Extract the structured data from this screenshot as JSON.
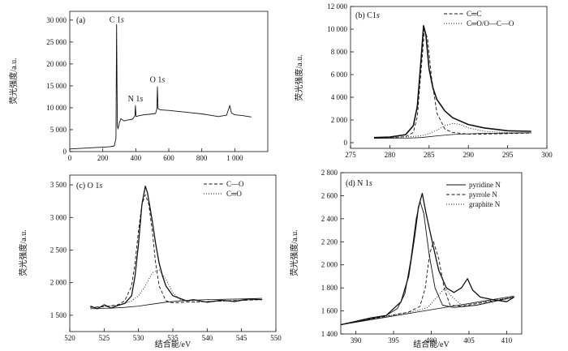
{
  "chart_data": [
    {
      "id": "a",
      "type": "line",
      "panel_label": "(a)",
      "xlabel": "",
      "ylabel": "荧光强度/a.u.",
      "xlim": [
        0,
        1200
      ],
      "ylim": [
        0,
        32000
      ],
      "xticks": [
        0,
        200,
        400,
        600,
        800,
        1000
      ],
      "xtick_labels": [
        "0",
        "200",
        "400",
        "600",
        "800",
        "1 000"
      ],
      "yticks": [
        0,
        5000,
        10000,
        15000,
        20000,
        25000,
        30000
      ],
      "ytick_labels": [
        "0",
        "5 000",
        "10 000",
        "15 000",
        "20 000",
        "25 000",
        "30 000"
      ],
      "annotations": [
        {
          "text": "C 1s",
          "x": 284,
          "y": 29500
        },
        {
          "text": "N 1s",
          "x": 398,
          "y": 11500
        },
        {
          "text": "O 1s",
          "x": 531,
          "y": 15800
        }
      ],
      "series": [
        {
          "name": "survey",
          "style": "solid",
          "x": [
            0,
            50,
            100,
            150,
            200,
            240,
            270,
            280,
            284,
            288,
            292,
            300,
            310,
            330,
            350,
            380,
            395,
            398,
            402,
            420,
            450,
            480,
            520,
            528,
            531,
            535,
            550,
            600,
            650,
            700,
            750,
            800,
            850,
            900,
            950,
            970,
            980,
            990,
            1000,
            1050,
            1100
          ],
          "y": [
            600,
            700,
            800,
            900,
            1000,
            1100,
            1300,
            3000,
            29000,
            6000,
            5200,
            6500,
            7500,
            7000,
            7200,
            7400,
            8200,
            10500,
            8000,
            8200,
            8400,
            8500,
            8700,
            9800,
            14800,
            9800,
            9500,
            9400,
            9200,
            9000,
            8800,
            8600,
            8300,
            8000,
            8300,
            10500,
            8800,
            8600,
            8400,
            8200,
            7900
          ]
        }
      ]
    },
    {
      "id": "b",
      "type": "line",
      "panel_label": "(b) C1s",
      "xlabel": "",
      "ylabel": "荧光强度/a.u.",
      "xlim": [
        275,
        300
      ],
      "ylim": [
        -500,
        12000
      ],
      "xticks": [
        275,
        280,
        285,
        290,
        295,
        300
      ],
      "xtick_labels": [
        "275",
        "280",
        "285",
        "290",
        "295",
        "300"
      ],
      "yticks": [
        0,
        2000,
        4000,
        6000,
        8000,
        10000,
        12000
      ],
      "ytick_labels": [
        "0",
        "2 000",
        "4 000",
        "6 000",
        "8 000",
        "10 000",
        "12 000"
      ],
      "legend": [
        "C═C",
        "C═O/O—C—O"
      ],
      "series": [
        {
          "name": "measured",
          "style": "solid",
          "width": 1.6,
          "x": [
            278,
            280,
            282,
            283,
            283.5,
            284,
            284.3,
            284.6,
            285,
            285.5,
            286,
            287,
            288,
            290,
            292,
            295,
            298
          ],
          "y": [
            450,
            500,
            700,
            1500,
            3200,
            7500,
            10300,
            9500,
            6500,
            4800,
            3800,
            2800,
            2200,
            1600,
            1300,
            1050,
            1000
          ]
        },
        {
          "name": "C═C",
          "style": "dashed",
          "x": [
            278,
            280,
            282,
            283,
            283.5,
            284,
            284.4,
            284.8,
            285.3,
            286,
            287,
            288,
            290,
            292,
            295,
            298
          ],
          "y": [
            420,
            450,
            520,
            900,
            2300,
            6500,
            9900,
            9200,
            5800,
            2600,
            1200,
            900,
            760,
            760,
            800,
            850
          ]
        },
        {
          "name": "C═O/O—C—O",
          "style": "dotted",
          "x": [
            278,
            282,
            284,
            285,
            286,
            287,
            288,
            289,
            290,
            292,
            295,
            298
          ],
          "y": [
            420,
            500,
            600,
            800,
            1100,
            1500,
            1700,
            1600,
            1300,
            1000,
            880,
            860
          ]
        },
        {
          "name": "background",
          "style": "solid",
          "width": 0.8,
          "x": [
            278,
            282,
            284,
            286,
            288,
            290,
            292,
            295,
            298
          ],
          "y": [
            380,
            400,
            450,
            600,
            720,
            780,
            820,
            850,
            870
          ]
        }
      ]
    },
    {
      "id": "c",
      "type": "line",
      "panel_label": "(c) O 1s",
      "xlabel": "结合能/eV",
      "ylabel": "荧光强度/a.u.",
      "xlim": [
        520,
        550
      ],
      "ylim": [
        1250,
        3650
      ],
      "xticks": [
        520,
        525,
        530,
        535,
        540,
        545,
        550
      ],
      "xtick_labels": [
        "520",
        "525",
        "530",
        "535",
        "540",
        "545",
        "550"
      ],
      "yticks": [
        1500,
        2000,
        2500,
        3000,
        3500
      ],
      "ytick_labels": [
        "1 500",
        "2 000",
        "2 500",
        "3 000",
        "3 500"
      ],
      "legend": [
        "C—O",
        "C═O"
      ],
      "series": [
        {
          "name": "measured",
          "style": "solid",
          "width": 1.3,
          "x": [
            523,
            524,
            525,
            526,
            527,
            528,
            529,
            529.5,
            530,
            530.5,
            531,
            531.3,
            531.6,
            532,
            532.5,
            533,
            533.5,
            534,
            535,
            536,
            537,
            538,
            540,
            542,
            544,
            546,
            548
          ],
          "y": [
            1640,
            1600,
            1660,
            1610,
            1650,
            1680,
            1800,
            2100,
            2600,
            3200,
            3480,
            3380,
            3200,
            2950,
            2600,
            2300,
            2100,
            1950,
            1800,
            1760,
            1720,
            1740,
            1700,
            1730,
            1710,
            1750,
            1740
          ]
        },
        {
          "name": "C—O",
          "style": "dashed",
          "x": [
            523,
            525,
            527,
            528,
            529,
            529.5,
            530,
            530.5,
            531,
            531.5,
            532,
            532.5,
            533,
            534,
            535,
            537,
            540,
            548
          ],
          "y": [
            1620,
            1630,
            1660,
            1720,
            1950,
            2300,
            2800,
            3200,
            3350,
            3200,
            2800,
            2300,
            1950,
            1720,
            1690,
            1700,
            1710,
            1740
          ]
        },
        {
          "name": "C═O",
          "style": "dotted",
          "x": [
            523,
            527,
            529,
            530,
            531,
            532,
            533,
            534,
            535,
            536,
            538,
            540,
            548
          ],
          "y": [
            1620,
            1650,
            1720,
            1800,
            1950,
            2150,
            2200,
            2050,
            1850,
            1740,
            1700,
            1710,
            1740
          ]
        },
        {
          "name": "background",
          "style": "solid",
          "width": 0.8,
          "x": [
            523,
            526,
            528,
            530,
            532,
            534,
            536,
            540,
            545,
            548
          ],
          "y": [
            1600,
            1610,
            1620,
            1640,
            1670,
            1700,
            1720,
            1740,
            1750,
            1760
          ]
        }
      ]
    },
    {
      "id": "d",
      "type": "line",
      "panel_label": "(d) N 1s",
      "xlabel": "结合能/eV",
      "ylabel": "荧光强度/a.u.",
      "xlim": [
        388,
        412
      ],
      "ylim": [
        1400,
        2800
      ],
      "xticks": [
        390,
        395,
        400,
        405,
        410
      ],
      "xtick_labels": [
        "390",
        "395",
        "400",
        "405",
        "410"
      ],
      "yticks": [
        1400,
        1600,
        1800,
        2000,
        2200,
        2400,
        2600,
        2800
      ],
      "ytick_labels": [
        "1 400",
        "1 600",
        "1 800",
        "2 000",
        "2 200",
        "2 400",
        "2 600",
        "2 800"
      ],
      "legend": [
        "pyridine N",
        "pyrrole N",
        "graphite N"
      ],
      "series": [
        {
          "name": "measured",
          "style": "solid",
          "width": 1.3,
          "x": [
            388,
            390,
            392,
            394,
            396,
            397,
            397.8,
            398.3,
            398.8,
            399.3,
            399.8,
            400.3,
            401,
            402,
            403,
            404,
            404.8,
            405.5,
            406.5,
            408,
            410,
            411
          ],
          "y": [
            1480,
            1510,
            1540,
            1560,
            1680,
            1900,
            2250,
            2500,
            2620,
            2450,
            2300,
            2150,
            1950,
            1800,
            1760,
            1800,
            1880,
            1780,
            1720,
            1700,
            1680,
            1720
          ]
        },
        {
          "name": "pyridine N",
          "style": "solid",
          "width": 0.9,
          "x": [
            388,
            394,
            395.5,
            396.5,
            397.3,
            398,
            398.5,
            399,
            399.7,
            400.5,
            401.5,
            403,
            406,
            411
          ],
          "y": [
            1480,
            1560,
            1620,
            1750,
            2050,
            2400,
            2550,
            2450,
            2100,
            1800,
            1650,
            1630,
            1650,
            1720
          ]
        },
        {
          "name": "pyrrole N",
          "style": "dashed",
          "x": [
            388,
            397,
            398.5,
            399.2,
            399.8,
            400.3,
            401,
            401.7,
            402.5,
            404,
            411
          ],
          "y": [
            1480,
            1590,
            1640,
            1800,
            2100,
            2200,
            2050,
            1800,
            1650,
            1640,
            1720
          ]
        },
        {
          "name": "graphite N",
          "style": "dotted",
          "x": [
            388,
            398,
            399.5,
            400.8,
            401.8,
            402.8,
            404,
            411
          ],
          "y": [
            1480,
            1600,
            1630,
            1720,
            1800,
            1720,
            1650,
            1720
          ]
        },
        {
          "name": "baseline",
          "style": "solid",
          "width": 0.8,
          "x": [
            388,
            411
          ],
          "y": [
            1480,
            1730
          ]
        }
      ]
    }
  ]
}
